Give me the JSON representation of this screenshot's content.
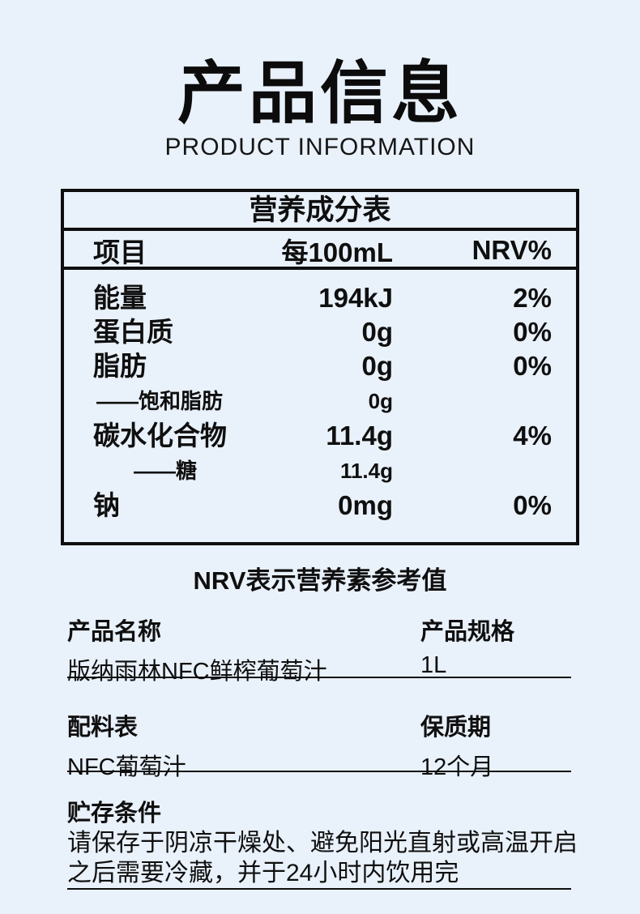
{
  "page": {
    "background_color": "#e9f1fa",
    "text_color": "#0f0f0f"
  },
  "header": {
    "title": "产品信息",
    "subtitle": "PRODUCT INFORMATION"
  },
  "nutrition_table": {
    "title": "营养成分表",
    "columns": [
      "项目",
      "每100mL",
      "NRV%"
    ],
    "rows": [
      {
        "item": "能量",
        "per100ml": "194kJ",
        "nrv": "2%"
      },
      {
        "item": "蛋白质",
        "per100ml": "0g",
        "nrv": "0%"
      },
      {
        "item": "脂肪",
        "per100ml": "0g",
        "nrv": "0%"
      },
      {
        "item": "——饱和脂肪",
        "per100ml": "0g",
        "nrv": ""
      },
      {
        "item": "碳水化合物",
        "per100ml": "11.4g",
        "nrv": "4%"
      },
      {
        "item": "——糖",
        "per100ml": "11.4g",
        "nrv": ""
      },
      {
        "item": "钠",
        "per100ml": "0mg",
        "nrv": "0%"
      }
    ],
    "footnote": "NRV表示营养素参考值"
  },
  "details": {
    "product_name": {
      "label": "产品名称",
      "value": "版纳雨林NFC鲜榨葡萄汁"
    },
    "product_spec": {
      "label": "产品规格",
      "value": "1L"
    },
    "ingredients": {
      "label": "配料表",
      "value": "NFC葡萄汁"
    },
    "shelf_life": {
      "label": "保质期",
      "value": "12个月"
    },
    "storage": {
      "label": "贮存条件",
      "line1": "请保存于阴凉干燥处、避免阳光直射或高温开启",
      "line2": "之后需要冷藏，并于24小时内饮用完"
    }
  }
}
